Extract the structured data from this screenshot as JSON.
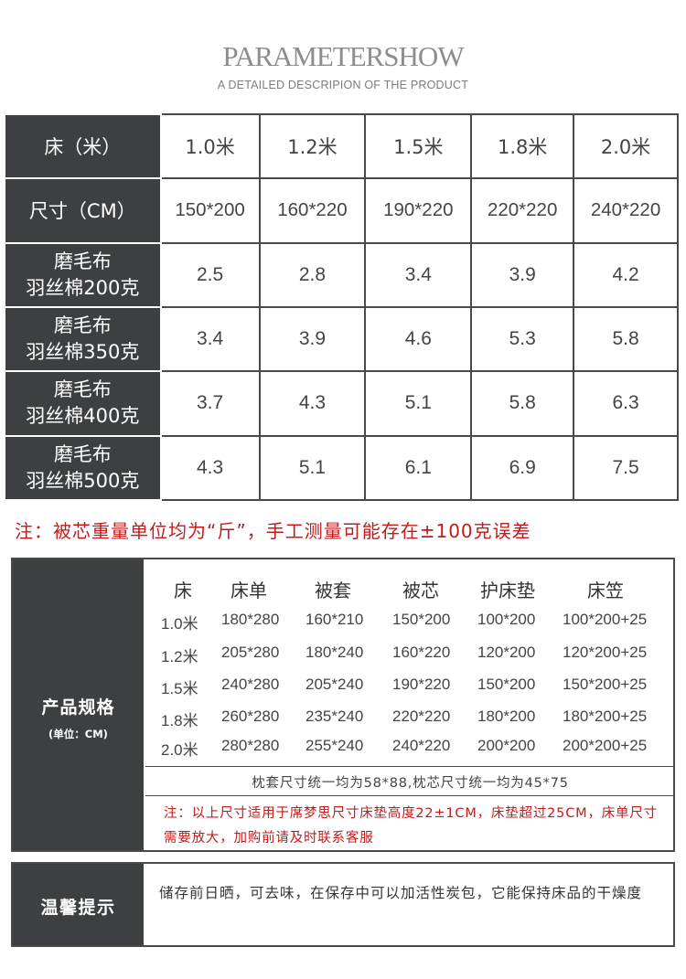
{
  "header": {
    "title": "PARAMETERSHOW",
    "subtitle": "A DETAILED DESCRIPION OF THE PRODUCT"
  },
  "size_table": {
    "bed_label": "床（米）",
    "size_label": "尺寸（CM）",
    "beds": [
      "1.0米",
      "1.2米",
      "1.5米",
      "1.8米",
      "2.0米"
    ],
    "sizes": [
      "150*200",
      "160*220",
      "190*220",
      "220*220",
      "240*220"
    ],
    "rows": [
      {
        "name1": "磨毛布",
        "name2": "羽丝棉200克",
        "values": [
          "2.5",
          "2.8",
          "3.4",
          "3.9",
          "4.2"
        ]
      },
      {
        "name1": "磨毛布",
        "name2": "羽丝棉350克",
        "values": [
          "3.4",
          "3.9",
          "4.6",
          "5.3",
          "5.8"
        ]
      },
      {
        "name1": "磨毛布",
        "name2": "羽丝棉400克",
        "values": [
          "3.7",
          "4.3",
          "5.1",
          "5.8",
          "6.3"
        ]
      },
      {
        "name1": "磨毛布",
        "name2": "羽丝棉500克",
        "values": [
          "4.3",
          "5.1",
          "6.1",
          "6.9",
          "7.5"
        ]
      }
    ]
  },
  "weight_note": "注：被芯重量单位均为“斤”，手工测量可能存在±100克误差",
  "spec": {
    "title": "产品规格",
    "unit": "(单位：CM)",
    "headers": [
      "床",
      "床单",
      "被套",
      "被芯",
      "护床垫",
      "床笠"
    ],
    "rows": [
      [
        "1.0米",
        "180*280",
        "160*210",
        "150*200",
        "100*200",
        "100*200+25"
      ],
      [
        "1.2米",
        "205*280",
        "180*240",
        "160*220",
        "120*200",
        "120*200+25"
      ],
      [
        "1.5米",
        "240*280",
        "205*240",
        "190*220",
        "150*200",
        "150*200+25"
      ],
      [
        "1.8米",
        "260*280",
        "235*240",
        "220*220",
        "180*200",
        "180*200+25"
      ],
      [
        "2.0米",
        "280*280",
        "255*240",
        "240*220",
        "200*200",
        "200*200+25"
      ]
    ],
    "pillow_note": "枕套尺寸统一均为58*88,枕芯尺寸统一均为45*75",
    "mattress_note": "注：以上尺寸适用于席梦思尺寸床垫高度22±1CM，床垫超过25CM，床单尺寸需要放大，加购前请及时联系客服"
  },
  "tips": {
    "title": "温馨提示",
    "text": "储存前日晒，可去味，在保存中可以加活性炭包，它能保持床品的干燥度"
  },
  "colors": {
    "dark_panel": "#3d3f42",
    "note_red": "#c41a1a"
  }
}
